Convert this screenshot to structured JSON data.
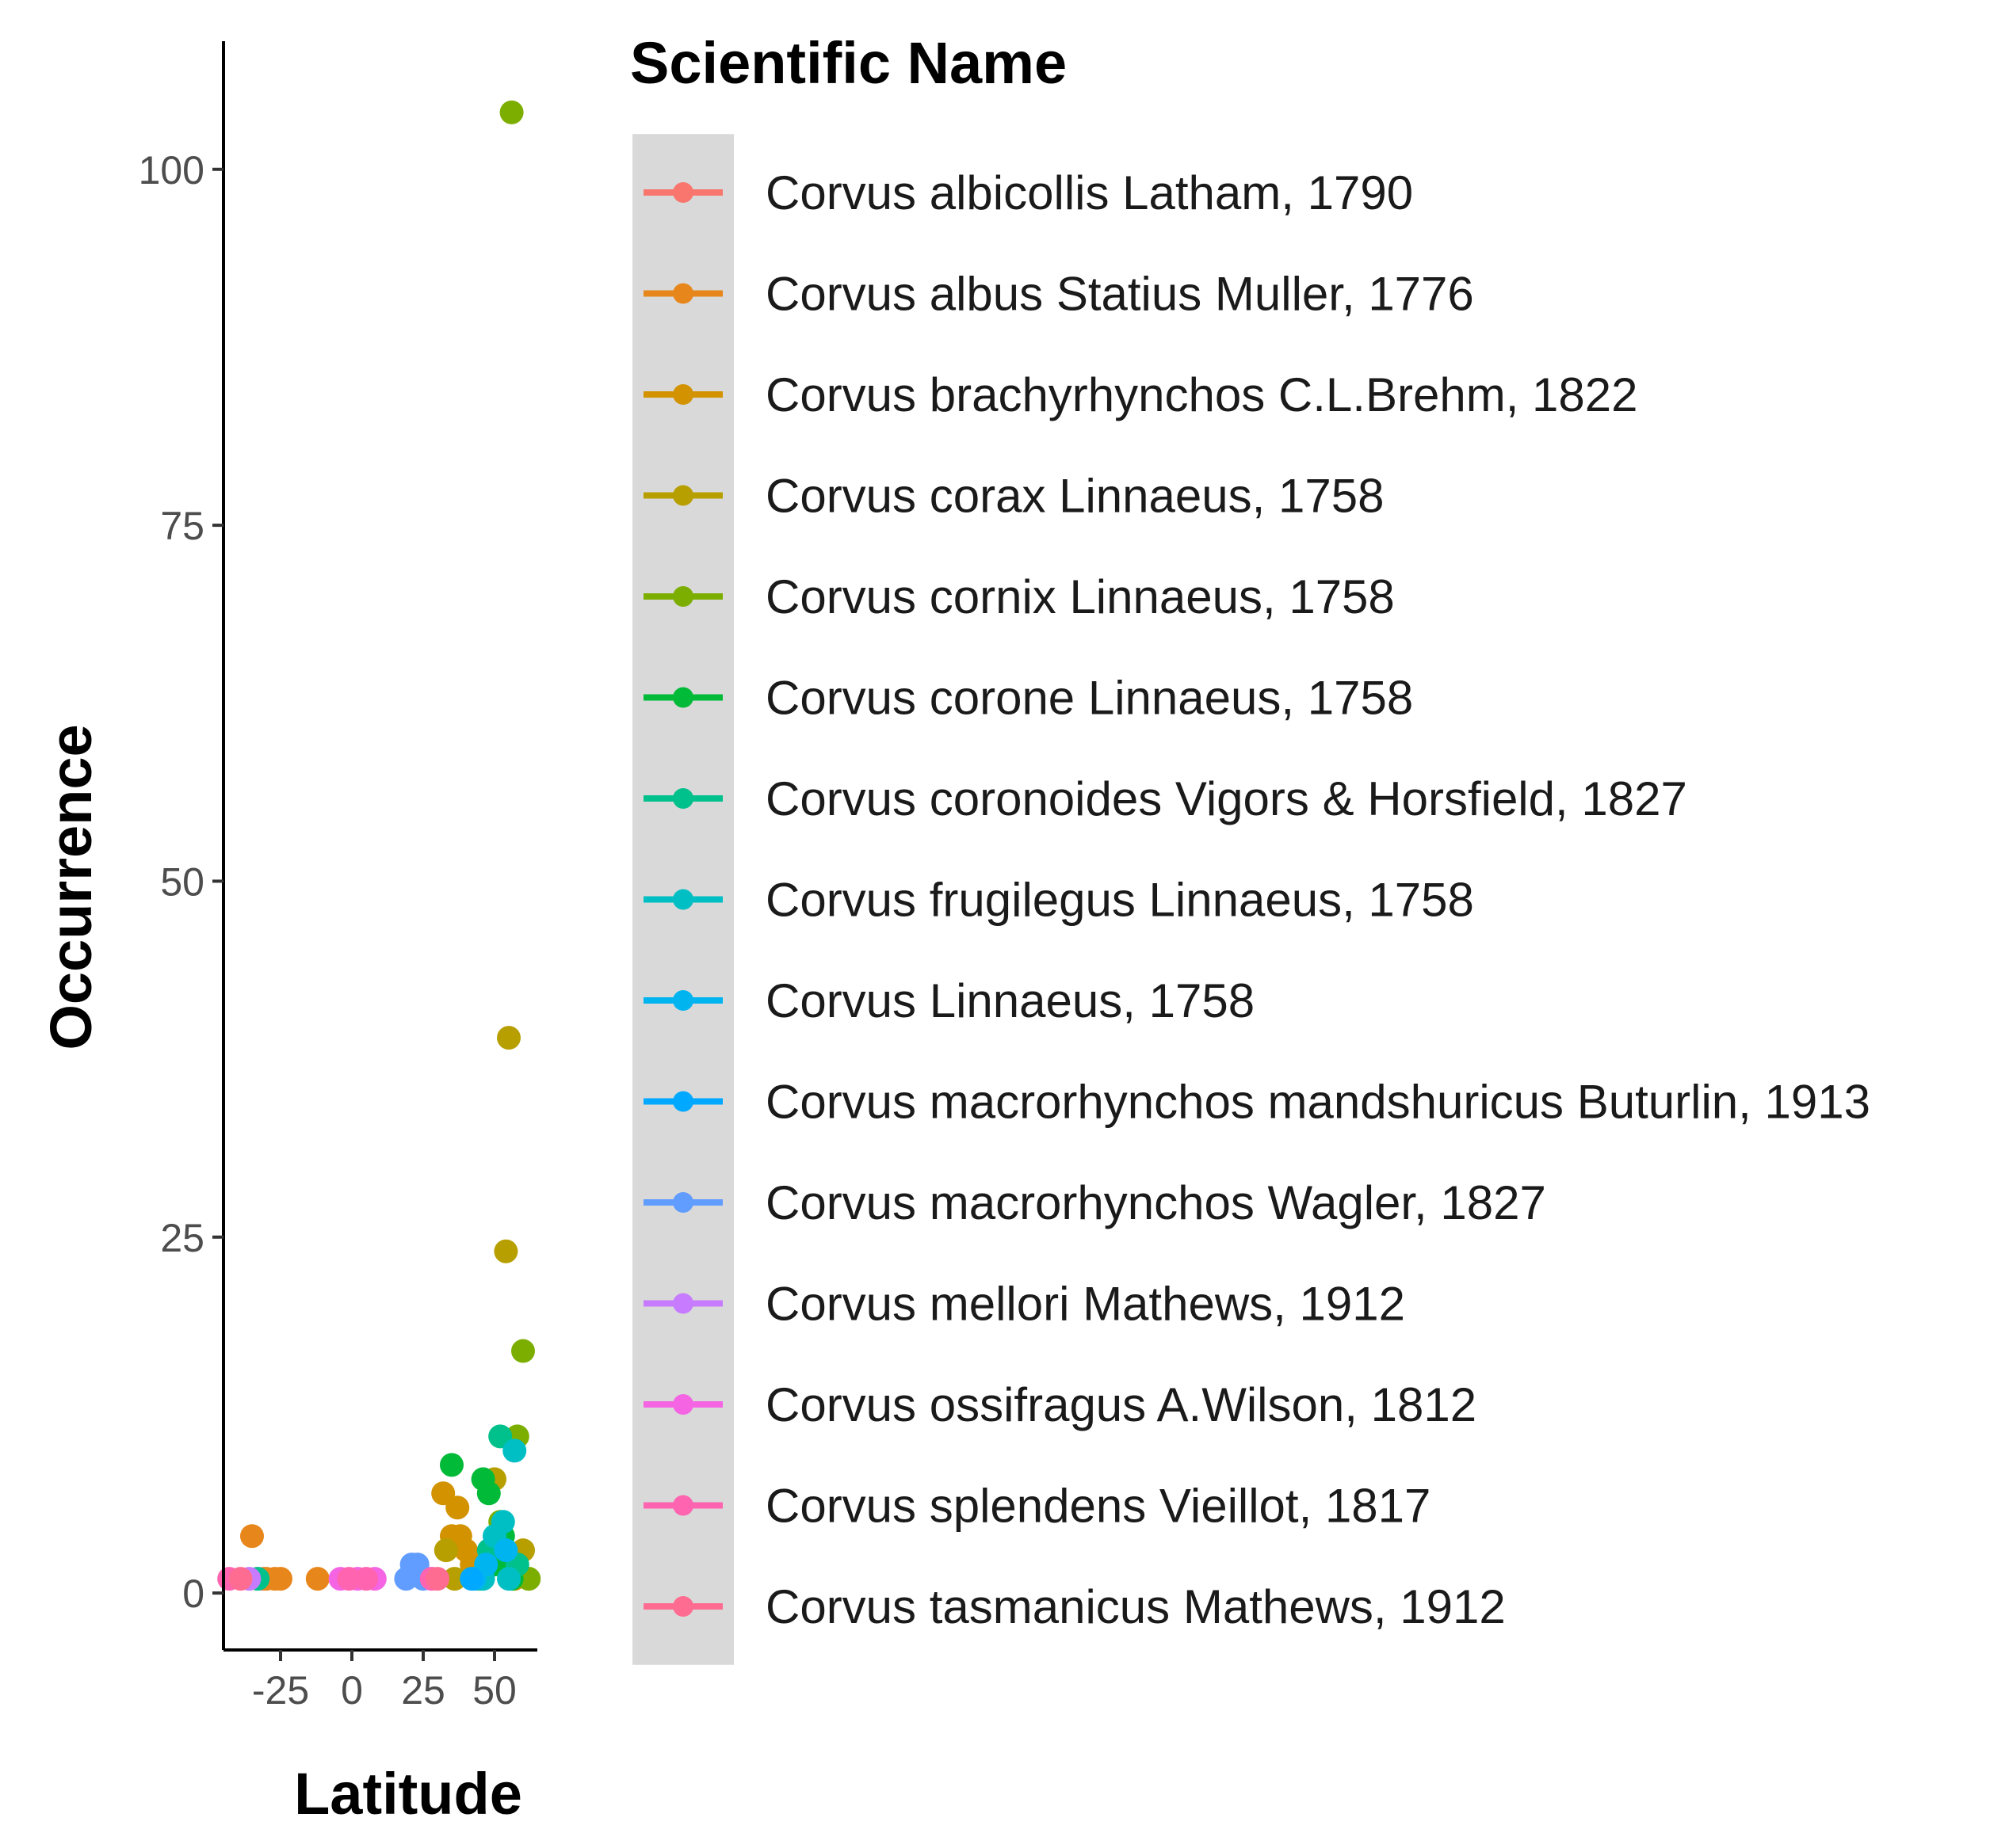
{
  "chart_data": {
    "type": "scatter",
    "xlabel": "Latitude",
    "ylabel": "Occurrence",
    "xlim": [
      -45,
      65
    ],
    "ylim": [
      -4,
      109
    ],
    "x_ticks": [
      -25,
      0,
      25,
      50
    ],
    "y_ticks": [
      0,
      25,
      50,
      75,
      100
    ],
    "x_tick_labels": [
      "-25",
      "0",
      "25",
      "50"
    ],
    "y_tick_labels": [
      "0",
      "25",
      "50",
      "75",
      100
    ],
    "grid": false,
    "legend": {
      "title": "Scientific Name",
      "placement": "right",
      "background": "#d9d9d9"
    },
    "series": [
      {
        "name": "Corvus albicollis Latham, 1790",
        "color": "#F8766D",
        "points": [
          [
            -33,
            1
          ],
          [
            -31,
            1
          ]
        ]
      },
      {
        "name": "Corvus albus Statius Muller, 1776",
        "color": "#E7861B",
        "points": [
          [
            -35,
            4
          ],
          [
            -30,
            1
          ],
          [
            -27,
            1
          ],
          [
            -25,
            1
          ],
          [
            -12,
            1
          ]
        ]
      },
      {
        "name": "Corvus brachyrhynchos C.L.Brehm, 1822",
        "color": "#D39200",
        "points": [
          [
            32,
            7
          ],
          [
            35,
            4
          ],
          [
            37,
            6
          ],
          [
            38,
            4
          ],
          [
            40,
            3
          ],
          [
            42,
            2
          ],
          [
            44,
            1
          ],
          [
            47,
            2
          ],
          [
            52,
            3
          ],
          [
            55,
            2
          ],
          [
            57,
            1
          ]
        ]
      },
      {
        "name": "Corvus corax Linnaeus, 1758",
        "color": "#B79F00",
        "points": [
          [
            55,
            39
          ],
          [
            54,
            24
          ],
          [
            50,
            8
          ],
          [
            33,
            3
          ],
          [
            36,
            1
          ],
          [
            45,
            1
          ],
          [
            60,
            3
          ],
          [
            62,
            1
          ]
        ]
      },
      {
        "name": "Corvus cornix Linnaeus, 1758",
        "color": "#7CAE00",
        "points": [
          [
            56,
            104
          ],
          [
            60,
            17
          ],
          [
            58,
            11
          ],
          [
            52,
            5
          ],
          [
            48,
            2
          ],
          [
            62,
            1
          ]
        ]
      },
      {
        "name": "Corvus corone Linnaeus, 1758",
        "color": "#00BA38",
        "points": [
          [
            35,
            9
          ],
          [
            46,
            8
          ],
          [
            48,
            7
          ],
          [
            50,
            2
          ],
          [
            53,
            4
          ],
          [
            56,
            1
          ]
        ]
      },
      {
        "name": "Corvus coronoides Vigors & Horsfield, 1827",
        "color": "#00C08B",
        "points": [
          [
            -33,
            1
          ],
          [
            52,
            11
          ],
          [
            45,
            1
          ],
          [
            48,
            3
          ],
          [
            58,
            2
          ]
        ]
      },
      {
        "name": "Corvus frugilegus Linnaeus, 1758",
        "color": "#00BFC4",
        "points": [
          [
            57,
            10
          ],
          [
            53,
            5
          ],
          [
            50,
            4
          ],
          [
            46,
            1
          ],
          [
            55,
            1
          ]
        ]
      },
      {
        "name": "Corvus Linnaeus, 1758",
        "color": "#00B4F0",
        "points": [
          [
            43,
            1
          ],
          [
            47,
            2
          ],
          [
            54,
            3
          ]
        ]
      },
      {
        "name": "Corvus macrorhynchos mandshuricus Buturlin, 1913",
        "color": "#00A9FF",
        "points": [
          [
            42,
            1
          ]
        ]
      },
      {
        "name": "Corvus macrorhynchos Wagler, 1827",
        "color": "#619CFF",
        "points": [
          [
            21,
            2
          ],
          [
            23,
            2
          ],
          [
            19,
            1
          ],
          [
            25,
            1
          ]
        ]
      },
      {
        "name": "Corvus mellori Mathews, 1912",
        "color": "#C77CFF",
        "points": [
          [
            -36,
            1
          ],
          [
            28,
            1
          ]
        ]
      },
      {
        "name": "Corvus ossifragus A.Wilson, 1812",
        "color": "#F564E3",
        "points": [
          [
            -4,
            1
          ],
          [
            2,
            1
          ],
          [
            8,
            1
          ]
        ]
      },
      {
        "name": "Corvus splendens Vieillot, 1817",
        "color": "#FF64B0",
        "points": [
          [
            -43,
            1
          ],
          [
            -1,
            1
          ],
          [
            5,
            1
          ],
          [
            28,
            1
          ]
        ]
      },
      {
        "name": "Corvus tasmanicus Mathews, 1912",
        "color": "#FF6C91",
        "points": [
          [
            -39,
            1
          ],
          [
            30,
            1
          ]
        ]
      }
    ]
  }
}
